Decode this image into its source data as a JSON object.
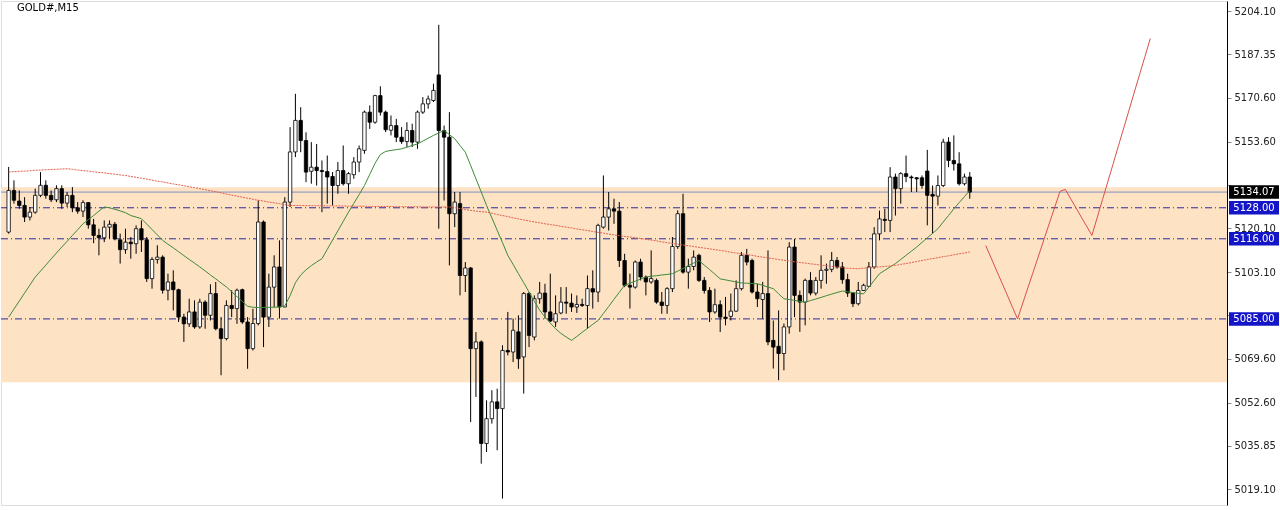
{
  "chart_data": {
    "type": "candlestick",
    "title": "GOLD#,M15",
    "color": "#000000",
    "categories": [
      null,
      null,
      null,
      null,
      null,
      null,
      null,
      null,
      null,
      null,
      null,
      null,
      null,
      null,
      null,
      null,
      null,
      null,
      null,
      null,
      null,
      null,
      null,
      null,
      null,
      null,
      null,
      null,
      null,
      null,
      null,
      null,
      null,
      null,
      null,
      null,
      null,
      null,
      null,
      null,
      null,
      null,
      null,
      null,
      null,
      null,
      null,
      null,
      null,
      null,
      null,
      null,
      null,
      null,
      null,
      null,
      null,
      null,
      null,
      null,
      null,
      null,
      null,
      null,
      null,
      null,
      null,
      null,
      null,
      null,
      null,
      null,
      null,
      null,
      null,
      null,
      null,
      null,
      null,
      null,
      null,
      null,
      null,
      null,
      null,
      null,
      null,
      null,
      null,
      null,
      null,
      null,
      null,
      null,
      null,
      null,
      null,
      null,
      null,
      null,
      null,
      null,
      null,
      null,
      null,
      null,
      null,
      null,
      null,
      null,
      null,
      null,
      null,
      null,
      null,
      null,
      null,
      null,
      null,
      null,
      null,
      null,
      null,
      null,
      null,
      null,
      null,
      null,
      null,
      null,
      null,
      null,
      null,
      null,
      null,
      null,
      null,
      null,
      null,
      null,
      null,
      null,
      null,
      null,
      null,
      null,
      null,
      null,
      null,
      null,
      null,
      null,
      null,
      null,
      null,
      null,
      null,
      null,
      null,
      null,
      null,
      null,
      null,
      null,
      null,
      null,
      null,
      null,
      null,
      null,
      null,
      null,
      null,
      null,
      null,
      null,
      null,
      null,
      null,
      null,
      null,
      null,
      null,
      null,
      null,
      null,
      null,
      null,
      null,
      null,
      null,
      null,
      null,
      null,
      null,
      null,
      null,
      null,
      null,
      null,
      null,
      null,
      null,
      null,
      null,
      null,
      null,
      null,
      null,
      null,
      null,
      null,
      null,
      null,
      null,
      null,
      null,
      null,
      null,
      null,
      null,
      null,
      null,
      null,
      null,
      null,
      null,
      null,
      null
    ],
    "ohlc": [
      [
        5118.6,
        5143.8,
        5118.0,
        5134.7
      ],
      [
        5134.7,
        5138.6,
        5129.6,
        5130.9
      ],
      [
        5130.6,
        5134.7,
        5127.6,
        5128.9
      ],
      [
        5128.9,
        5132.1,
        5122.5,
        5124.4
      ],
      [
        5124.4,
        5128.3,
        5123.1,
        5126.3
      ],
      [
        5126.3,
        5135.4,
        5125.7,
        5132.8
      ],
      [
        5132.8,
        5141.8,
        5132.1,
        5136.7
      ],
      [
        5136.7,
        5138.6,
        5131.5,
        5132.8
      ],
      [
        5132.8,
        5134.7,
        5130.2,
        5131.1
      ],
      [
        5131.1,
        5136.7,
        5130.2,
        5135.4
      ],
      [
        5135.4,
        5136.7,
        5127.6,
        5129.8
      ],
      [
        5129.8,
        5134.1,
        5128.3,
        5132.8
      ],
      [
        5132.8,
        5136.0,
        5126.3,
        5128.0
      ],
      [
        5128.0,
        5130.2,
        5125.7,
        5126.7
      ],
      [
        5126.7,
        5130.9,
        5124.4,
        5130.0
      ],
      [
        5130.0,
        5130.2,
        5119.9,
        5121.4
      ],
      [
        5121.4,
        5123.7,
        5114.3,
        5117.3
      ],
      [
        5117.3,
        5119.9,
        5109.6,
        5116.4
      ],
      [
        5116.4,
        5123.1,
        5114.7,
        5120.5
      ],
      [
        5120.5,
        5123.1,
        5116.0,
        5121.6
      ],
      [
        5121.6,
        5122.5,
        5115.4,
        5116.0
      ],
      [
        5115.6,
        5118.0,
        5106.4,
        5111.8
      ],
      [
        5111.8,
        5119.9,
        5110.2,
        5114.7
      ],
      [
        5114.7,
        5116.7,
        5108.3,
        5114.1
      ],
      [
        5114.1,
        5121.2,
        5110.2,
        5119.9
      ],
      [
        5119.9,
        5123.1,
        5110.9,
        5115.6
      ],
      [
        5115.6,
        5116.7,
        5099.3,
        5100.6
      ],
      [
        5100.6,
        5108.9,
        5096.7,
        5108.0
      ],
      [
        5108.0,
        5113.5,
        5106.4,
        5108.9
      ],
      [
        5108.9,
        5109.6,
        5094.8,
        5096.1
      ],
      [
        5096.1,
        5102.5,
        5092.2,
        5099.3
      ],
      [
        5099.3,
        5103.8,
        5088.3,
        5096.3
      ],
      [
        5096.3,
        5096.7,
        5083.8,
        5085.7
      ],
      [
        5085.7,
        5087.0,
        5076.1,
        5083.1
      ],
      [
        5083.1,
        5092.8,
        5081.9,
        5087.7
      ],
      [
        5087.7,
        5092.2,
        5081.2,
        5081.9
      ],
      [
        5081.9,
        5092.8,
        5081.2,
        5091.5
      ],
      [
        5091.5,
        5092.2,
        5081.2,
        5086.4
      ],
      [
        5086.4,
        5098.4,
        5084.4,
        5094.8
      ],
      [
        5094.8,
        5099.3,
        5080.6,
        5081.2
      ],
      [
        5081.2,
        5085.7,
        5063.2,
        5077.4
      ],
      [
        5077.4,
        5092.2,
        5076.7,
        5090.2
      ],
      [
        5090.2,
        5096.1,
        5085.7,
        5089.0
      ],
      [
        5089.0,
        5096.7,
        5083.1,
        5096.1
      ],
      [
        5096.3,
        5096.7,
        5083.1,
        5083.8
      ],
      [
        5083.8,
        5085.7,
        5065.7,
        5073.5
      ],
      [
        5073.5,
        5088.9,
        5072.8,
        5083.2
      ],
      [
        5083.2,
        5130.9,
        5082.5,
        5122.5
      ],
      [
        5122.5,
        5123.1,
        5074.1,
        5085.7
      ],
      [
        5085.7,
        5102.5,
        5081.9,
        5097.3
      ],
      [
        5097.3,
        5109.6,
        5089.6,
        5105.1
      ],
      [
        5105.1,
        5115.4,
        5085.1,
        5089.6
      ],
      [
        5089.6,
        5132.1,
        5089.6,
        5130.2
      ],
      [
        5130.2,
        5159.2,
        5128.3,
        5149.6
      ],
      [
        5149.6,
        5172.1,
        5147.6,
        5161.8
      ],
      [
        5161.8,
        5166.9,
        5149.5,
        5154.0
      ],
      [
        5154.0,
        5157.2,
        5137.9,
        5141.8
      ],
      [
        5142.1,
        5153.4,
        5137.3,
        5143.7
      ],
      [
        5143.7,
        5152.7,
        5136.6,
        5142.4
      ],
      [
        5142.4,
        5146.3,
        5126.3,
        5142.0
      ],
      [
        5142.0,
        5148.2,
        5129.6,
        5139.9
      ],
      [
        5140.1,
        5141.8,
        5128.9,
        5136.6
      ],
      [
        5136.6,
        5145.7,
        5133.4,
        5142.4
      ],
      [
        5142.4,
        5152.1,
        5136.6,
        5137.3
      ],
      [
        5137.3,
        5141.8,
        5133.4,
        5141.2
      ],
      [
        5140.8,
        5147.6,
        5139.2,
        5145.7
      ],
      [
        5145.7,
        5152.1,
        5141.8,
        5150.8
      ],
      [
        5150.2,
        5165.6,
        5148.9,
        5165.0
      ],
      [
        5165.0,
        5167.6,
        5158.5,
        5161.1
      ],
      [
        5161.1,
        5171.7,
        5160.5,
        5171.4
      ],
      [
        5171.4,
        5175.0,
        5163.7,
        5165.0
      ],
      [
        5165.0,
        5165.6,
        5157.3,
        5158.2
      ],
      [
        5158.0,
        5163.7,
        5156.0,
        5159.8
      ],
      [
        5159.8,
        5162.4,
        5153.4,
        5155.3
      ],
      [
        5155.3,
        5159.2,
        5152.7,
        5153.6
      ],
      [
        5153.6,
        5161.1,
        5151.5,
        5157.9
      ],
      [
        5157.9,
        5160.5,
        5151.5,
        5153.4
      ],
      [
        5153.4,
        5165.6,
        5150.8,
        5165.0
      ],
      [
        5165.0,
        5170.8,
        5164.3,
        5168.2
      ],
      [
        5168.2,
        5171.4,
        5166.3,
        5170.1
      ],
      [
        5169.5,
        5176.0,
        5168.9,
        5173.4
      ],
      [
        5179.4,
        5198.8,
        5119.9,
        5157.9
      ],
      [
        5157.9,
        5159.8,
        5130.8,
        5155.3
      ],
      [
        5155.3,
        5165.0,
        5105.7,
        5125.7
      ],
      [
        5125.7,
        5134.1,
        5120.5,
        5130.2
      ],
      [
        5129.6,
        5134.1,
        5094.1,
        5101.8
      ],
      [
        5101.8,
        5107.0,
        5095.4,
        5104.7
      ],
      [
        5104.7,
        5105.1,
        5045.1,
        5073.5
      ],
      [
        5073.5,
        5079.9,
        5054.8,
        5076.1
      ],
      [
        5076.1,
        5076.7,
        5029.0,
        5036.8
      ],
      [
        5036.8,
        5053.5,
        5033.5,
        5046.4
      ],
      [
        5046.4,
        5057.4,
        5044.5,
        5052.9
      ],
      [
        5052.9,
        5058.0,
        5034.2,
        5050.3
      ],
      [
        5050.3,
        5074.8,
        5015.5,
        5072.8
      ],
      [
        5072.8,
        5087.7,
        5070.9,
        5072.2
      ],
      [
        5072.2,
        5085.1,
        5068.3,
        5080.6
      ],
      [
        5080.0,
        5086.4,
        5065.7,
        5069.6
      ],
      [
        5070.3,
        5095.4,
        5056.1,
        5094.8
      ],
      [
        5094.8,
        5095.4,
        5074.1,
        5078.6
      ],
      [
        5078.0,
        5094.1,
        5076.7,
        5092.8
      ],
      [
        5092.8,
        5099.3,
        5090.9,
        5095.0
      ],
      [
        5095.0,
        5098.6,
        5085.1,
        5087.7
      ],
      [
        5087.7,
        5102.5,
        5083.8,
        5084.2
      ],
      [
        5083.8,
        5094.1,
        5081.9,
        5087.0
      ],
      [
        5087.3,
        5097.3,
        5086.8,
        5091.5
      ],
      [
        5091.5,
        5097.3,
        5087.0,
        5091.1
      ],
      [
        5091.1,
        5094.8,
        5087.7,
        5089.6
      ],
      [
        5089.6,
        5094.1,
        5087.3,
        5090.6
      ],
      [
        5090.6,
        5092.8,
        5089.6,
        5090.2
      ],
      [
        5090.2,
        5101.8,
        5081.2,
        5096.7
      ],
      [
        5096.7,
        5103.8,
        5089.0,
        5095.4
      ],
      [
        5095.4,
        5121.8,
        5091.5,
        5121.2
      ],
      [
        5120.5,
        5140.5,
        5119.9,
        5124.4
      ],
      [
        5124.4,
        5134.1,
        5119.2,
        5127.6
      ],
      [
        5127.6,
        5131.5,
        5121.8,
        5126.7
      ],
      [
        5126.7,
        5130.2,
        5105.1,
        5107.6
      ],
      [
        5107.6,
        5110.2,
        5097.3,
        5098.0
      ],
      [
        5098.0,
        5102.5,
        5089.0,
        5097.3
      ],
      [
        5097.3,
        5107.6,
        5096.7,
        5107.0
      ],
      [
        5107.0,
        5108.3,
        5099.9,
        5101.2
      ],
      [
        5101.2,
        5101.8,
        5094.1,
        5099.3
      ],
      [
        5099.3,
        5111.5,
        5098.6,
        5100.6
      ],
      [
        5099.9,
        5100.6,
        5090.9,
        5091.5
      ],
      [
        5091.5,
        5095.4,
        5087.0,
        5090.2
      ],
      [
        5090.2,
        5097.3,
        5087.0,
        5096.7
      ],
      [
        5096.7,
        5116.7,
        5095.4,
        5113.0
      ],
      [
        5113.0,
        5127.0,
        5112.1,
        5125.7
      ],
      [
        5125.7,
        5133.4,
        5102.5,
        5103.1
      ],
      [
        5103.1,
        5108.3,
        5096.7,
        5105.3
      ],
      [
        5105.3,
        5111.5,
        5103.8,
        5108.9
      ],
      [
        5109.6,
        5110.2,
        5099.3,
        5099.9
      ],
      [
        5099.9,
        5101.2,
        5094.8,
        5096.0
      ],
      [
        5096.0,
        5097.3,
        5083.8,
        5087.7
      ],
      [
        5087.7,
        5096.7,
        5087.0,
        5090.5
      ],
      [
        5090.5,
        5092.2,
        5079.9,
        5085.7
      ],
      [
        5085.7,
        5093.5,
        5082.5,
        5085.1
      ],
      [
        5086.0,
        5094.8,
        5084.4,
        5088.0
      ],
      [
        5088.0,
        5099.9,
        5087.7,
        5096.7
      ],
      [
        5096.7,
        5110.9,
        5096.0,
        5109.6
      ],
      [
        5109.6,
        5112.1,
        5105.7,
        5107.0
      ],
      [
        5107.6,
        5108.3,
        5094.8,
        5095.4
      ],
      [
        5095.4,
        5098.6,
        5089.6,
        5092.8
      ],
      [
        5092.5,
        5099.3,
        5085.1,
        5094.8
      ],
      [
        5094.8,
        5111.5,
        5074.8,
        5076.1
      ],
      [
        5076.7,
        5084.4,
        5065.8,
        5074.1
      ],
      [
        5074.4,
        5088.3,
        5061.3,
        5071.6
      ],
      [
        5071.6,
        5083.2,
        5065.1,
        5081.9
      ],
      [
        5081.9,
        5114.7,
        5079.3,
        5112.8
      ],
      [
        5112.8,
        5116.0,
        5085.7,
        5094.1
      ],
      [
        5094.1,
        5096.0,
        5080.0,
        5091.5
      ],
      [
        5091.5,
        5100.6,
        5082.5,
        5099.9
      ],
      [
        5099.9,
        5103.1,
        5094.1,
        5095.0
      ],
      [
        5095.0,
        5101.2,
        5094.1,
        5099.9
      ],
      [
        5099.9,
        5109.6,
        5096.7,
        5103.8
      ],
      [
        5103.8,
        5106.4,
        5098.6,
        5104.2
      ],
      [
        5104.2,
        5110.9,
        5103.1,
        5107.6
      ],
      [
        5107.6,
        5108.9,
        5104.4,
        5105.1
      ],
      [
        5105.1,
        5107.0,
        5098.6,
        5100.2
      ],
      [
        5100.2,
        5102.5,
        5093.5,
        5095.0
      ],
      [
        5095.0,
        5095.4,
        5089.6,
        5090.9
      ],
      [
        5090.9,
        5099.3,
        5090.2,
        5096.0
      ],
      [
        5096.0,
        5098.6,
        5096.0,
        5098.0
      ],
      [
        5097.6,
        5107.0,
        5097.3,
        5105.1
      ],
      [
        5105.1,
        5120.5,
        5104.4,
        5117.9
      ],
      [
        5117.9,
        5126.9,
        5115.4,
        5123.7
      ],
      [
        5123.5,
        5127.6,
        5118.6,
        5123.1
      ],
      [
        5123.1,
        5143.7,
        5118.6,
        5139.9
      ],
      [
        5139.9,
        5141.2,
        5125.0,
        5135.4
      ],
      [
        5135.4,
        5141.8,
        5129.6,
        5141.2
      ],
      [
        5141.2,
        5148.2,
        5137.9,
        5140.1
      ],
      [
        5139.9,
        5140.5,
        5134.1,
        5139.6
      ],
      [
        5139.6,
        5139.9,
        5134.1,
        5139.2
      ],
      [
        5139.6,
        5140.5,
        5135.4,
        5136.6
      ],
      [
        5142.2,
        5150.4,
        5121.2,
        5132.8
      ],
      [
        5133.2,
        5136.6,
        5118.0,
        5132.5
      ],
      [
        5132.5,
        5140.5,
        5128.9,
        5136.6
      ],
      [
        5136.6,
        5154.7,
        5136.0,
        5153.4
      ],
      [
        5153.4,
        5155.3,
        5143.7,
        5146.3
      ],
      [
        5146.3,
        5156.0,
        5142.4,
        5145.0
      ],
      [
        5145.0,
        5149.5,
        5136.6,
        5137.3
      ],
      [
        5137.3,
        5141.2,
        5136.6,
        5139.9
      ],
      [
        5139.9,
        5141.8,
        5131.5,
        5134.07
      ],
      null,
      null,
      null,
      null,
      null,
      null,
      null,
      null,
      null,
      null,
      null,
      null,
      null,
      null,
      null,
      null,
      null,
      null,
      null,
      null,
      null,
      null,
      null,
      null,
      null,
      null,
      null,
      null,
      null,
      null,
      null,
      null,
      null,
      null,
      null,
      null,
      null,
      null,
      null,
      null,
      null,
      null,
      null,
      null,
      null,
      null,
      null
    ],
    "series": [
      {
        "type": "line",
        "color": "#3d8b37",
        "line_style": "solid",
        "values": [
          5085.7,
          5088.8,
          5091.9,
          5095.0,
          5098.1,
          5101.2,
          5103.5,
          5105.8,
          5108.2,
          5110.5,
          5112.8,
          5115.0,
          5117.3,
          5119.5,
          5121.8,
          5123.4,
          5125.0,
          5126.7,
          5128.3,
          5128.0,
          5127.4,
          5126.8,
          5126.1,
          5125.0,
          5124.4,
          5123.8,
          5121.7,
          5119.6,
          5117.5,
          5115.4,
          5113.9,
          5112.5,
          5111.0,
          5109.5,
          5108.0,
          5106.6,
          5105.1,
          5103.6,
          5102.0,
          5100.5,
          5098.9,
          5097.4,
          5095.5,
          5093.6,
          5091.8,
          5089.9,
          5089.5,
          5089.4,
          5089.4,
          5089.5,
          5089.5,
          5089.6,
          5090.0,
          5094.0,
          5099.0,
          5102.0,
          5104.0,
          5105.6,
          5107.0,
          5108.3,
          5111.9,
          5115.5,
          5119.1,
          5122.7,
          5126.3,
          5129.7,
          5133.1,
          5136.6,
          5140.9,
          5145.2,
          5148.6,
          5149.8,
          5150.2,
          5150.5,
          5150.8,
          5151.4,
          5152.1,
          5152.7,
          5153.8,
          5154.9,
          5156.0,
          5157.0,
          5157.9,
          5156.3,
          5154.7,
          5152.1,
          5149.5,
          5144.4,
          5139.2,
          5134.1,
          5128.9,
          5124.1,
          5119.3,
          5114.5,
          5109.6,
          5106.1,
          5102.5,
          5099.0,
          5095.4,
          5091.8,
          5088.4,
          5085.7,
          5083.4,
          5081.2,
          5079.4,
          5078.0,
          5076.7,
          5078.2,
          5079.8,
          5081.3,
          5082.9,
          5084.4,
          5087.1,
          5089.8,
          5092.6,
          5095.3,
          5098.0,
          5098.8,
          5099.6,
          5100.4,
          5101.2,
          5101.5,
          5101.7,
          5102.0,
          5102.2,
          5102.5,
          5103.5,
          5104.5,
          5105.6,
          5106.6,
          5107.6,
          5105.8,
          5104.1,
          5102.3,
          5100.5,
          5100.1,
          5099.7,
          5099.3,
          5098.9,
          5098.8,
          5098.7,
          5098.6,
          5098.0,
          5097.3,
          5096.7,
          5094.7,
          5092.8,
          5092.5,
          5092.2,
          5091.8,
          5091.5,
          5092.1,
          5092.7,
          5093.3,
          5094.0,
          5094.6,
          5095.2,
          5095.8,
          5095.5,
          5095.2,
          5094.9,
          5094.7,
          5097.3,
          5099.9,
          5102.5,
          5103.8,
          5105.1,
          5106.4,
          5108.0,
          5109.6,
          5111.2,
          5112.8,
          5114.6,
          5116.4,
          5118.1,
          5119.9,
          5122.5,
          5125.0,
          5127.6,
          5130.0,
          5132.3,
          5134.7,
          null,
          null,
          null,
          null,
          null,
          null,
          null,
          null,
          null,
          null,
          null,
          null,
          null,
          null,
          null,
          null,
          null,
          null,
          null,
          null,
          null,
          null,
          null,
          null,
          null,
          null,
          null,
          null,
          null,
          null,
          null,
          null,
          null,
          null,
          null,
          null,
          null,
          null,
          null,
          null,
          null,
          null,
          null,
          null,
          null,
          null,
          null
        ]
      },
      {
        "type": "line",
        "color": "#e0604e",
        "line_style": "dotted",
        "values": [
          5141.8,
          5142.0,
          5142.1,
          5142.2,
          5142.3,
          5142.5,
          5142.6,
          5142.7,
          5142.8,
          5142.9,
          5143.0,
          5143.1,
          5142.9,
          5142.6,
          5142.4,
          5142.2,
          5141.9,
          5141.7,
          5141.5,
          5141.2,
          5141.0,
          5140.7,
          5140.5,
          5140.1,
          5139.8,
          5139.4,
          5139.1,
          5138.7,
          5138.3,
          5138.0,
          5137.6,
          5137.2,
          5136.9,
          5136.5,
          5136.1,
          5135.8,
          5135.4,
          5135.0,
          5134.6,
          5134.2,
          5133.8,
          5133.3,
          5132.9,
          5132.5,
          5132.1,
          5131.7,
          5131.3,
          5130.9,
          5130.6,
          5130.2,
          5129.9,
          5129.6,
          5129.2,
          5128.9,
          5128.9,
          5128.9,
          5128.8,
          5128.8,
          5128.8,
          5128.8,
          5128.7,
          5128.7,
          5128.7,
          5128.7,
          5128.6,
          5128.6,
          5128.6,
          5128.6,
          5128.5,
          5128.5,
          5128.5,
          5128.5,
          5128.5,
          5128.4,
          5128.4,
          5128.4,
          5128.4,
          5128.4,
          5128.3,
          5128.3,
          5128.3,
          5128.3,
          5128.3,
          5128.3,
          5128.0,
          5127.7,
          5127.3,
          5127.0,
          5126.7,
          5126.5,
          5126.3,
          5125.9,
          5125.4,
          5125.0,
          5124.6,
          5124.1,
          5123.7,
          5123.3,
          5122.9,
          5122.5,
          5122.2,
          5121.8,
          5121.5,
          5121.2,
          5120.8,
          5120.5,
          5120.2,
          5119.8,
          5119.5,
          5119.2,
          5118.8,
          5118.5,
          5118.2,
          5117.8,
          5117.5,
          5117.2,
          5116.9,
          5116.7,
          5116.4,
          5116.1,
          5115.8,
          5115.5,
          5115.2,
          5114.8,
          5114.5,
          5114.2,
          5113.9,
          5113.6,
          5113.3,
          5113.0,
          5112.7,
          5112.4,
          5112.1,
          5111.8,
          5111.5,
          5111.2,
          5110.8,
          5110.5,
          5110.2,
          5109.9,
          5109.6,
          5109.2,
          5108.9,
          5108.6,
          5108.3,
          5108.0,
          5107.7,
          5107.4,
          5107.1,
          5106.8,
          5106.6,
          5106.3,
          5106.1,
          5105.8,
          5105.6,
          5105.3,
          5105.1,
          5104.8,
          5104.6,
          5104.5,
          5104.4,
          5104.6,
          5104.8,
          5105.0,
          5105.1,
          5105.3,
          5105.5,
          5105.7,
          5106.1,
          5106.4,
          5106.8,
          5107.2,
          5107.6,
          5108.0,
          5108.3,
          5108.7,
          5109.1,
          5109.4,
          5109.8,
          5110.2,
          5110.5,
          5110.9,
          null,
          null,
          null,
          null,
          null,
          null,
          null,
          null,
          null,
          null,
          null,
          null,
          null,
          null,
          null,
          null,
          null,
          null,
          null,
          null,
          null,
          null,
          null,
          null,
          null,
          null,
          null,
          null,
          null,
          null,
          null,
          null,
          null,
          null,
          null,
          null,
          null,
          null,
          null,
          null,
          null,
          null,
          null,
          null,
          null,
          null,
          null
        ]
      },
      {
        "type": "line",
        "color": "#d9504a",
        "line_style": "solid",
        "values": [
          null,
          null,
          null,
          null,
          null,
          null,
          null,
          null,
          null,
          null,
          null,
          null,
          null,
          null,
          null,
          null,
          null,
          null,
          null,
          null,
          null,
          null,
          null,
          null,
          null,
          null,
          null,
          null,
          null,
          null,
          null,
          null,
          null,
          null,
          null,
          null,
          null,
          null,
          null,
          null,
          null,
          null,
          null,
          null,
          null,
          null,
          null,
          null,
          null,
          null,
          null,
          null,
          null,
          null,
          null,
          null,
          null,
          null,
          null,
          null,
          null,
          null,
          null,
          null,
          null,
          null,
          null,
          null,
          null,
          null,
          null,
          null,
          null,
          null,
          null,
          null,
          null,
          null,
          null,
          null,
          null,
          null,
          null,
          null,
          null,
          null,
          null,
          null,
          null,
          null,
          null,
          null,
          null,
          null,
          null,
          null,
          null,
          null,
          null,
          null,
          null,
          null,
          null,
          null,
          null,
          null,
          null,
          null,
          null,
          null,
          null,
          null,
          null,
          null,
          null,
          null,
          null,
          null,
          null,
          null,
          null,
          null,
          null,
          null,
          null,
          null,
          null,
          null,
          null,
          null,
          null,
          null,
          null,
          null,
          null,
          null,
          null,
          null,
          null,
          null,
          null,
          null,
          null,
          null,
          null,
          null,
          null,
          null,
          null,
          null,
          null,
          null,
          null,
          null,
          null,
          null,
          null,
          null,
          null,
          null,
          null,
          null,
          null,
          null,
          null,
          null,
          null,
          null,
          null,
          null,
          null,
          null,
          null,
          null,
          null,
          null,
          null,
          null,
          null,
          null,
          null,
          null,
          null,
          null,
          5113.4,
          5108.7,
          5103.9,
          5099.2,
          5094.5,
          5089.7,
          5085.0,
          5091.2,
          5097.4,
          5103.5,
          5109.7,
          5115.9,
          5122.1,
          5128.2,
          5134.4,
          5135.1,
          5131.5,
          5128.0,
          5124.4,
          5120.9,
          5117.3,
          5124.2,
          5131.2,
          5138.1,
          5145.0,
          5152.0,
          5158.9,
          5165.8,
          5172.8,
          5179.7,
          5186.6,
          5193.5,
          null,
          null,
          null,
          null,
          null,
          null,
          null,
          null,
          null,
          null,
          null,
          null,
          null
        ]
      }
    ],
    "ylim": [
      5013.0,
      5208.0
    ],
    "yticks": [
      {
        "value": 5204.1,
        "label": "5204.10"
      },
      {
        "value": 5187.35,
        "label": "5187.35"
      },
      {
        "value": 5170.6,
        "label": "5170.60"
      },
      {
        "value": 5153.6,
        "label": "5153.60"
      },
      {
        "value": 5136.85,
        "label": null
      },
      {
        "value": 5120.1,
        "label": "5120.10"
      },
      {
        "value": 5103.1,
        "label": "5103.10"
      },
      {
        "value": 5086.35,
        "label": null
      },
      {
        "value": 5069.6,
        "label": "5069.60"
      },
      {
        "value": 5052.6,
        "label": "5052.60"
      },
      {
        "value": 5035.85,
        "label": "5035.85"
      },
      {
        "value": 5019.1,
        "label": "5019.10"
      }
    ],
    "bands": [
      {
        "axis": "y",
        "from": 5060.5,
        "to": 5135.9,
        "color": "#fde2c4"
      }
    ],
    "ref_lines": [
      {
        "axis": "y",
        "value": 5134.07,
        "label": "5134.07",
        "color": "#7f92c4",
        "line_style": "solid"
      },
      {
        "axis": "y",
        "value": 5128,
        "label": "5128.00",
        "color": "#2a2a9a",
        "line_style": "dashed"
      },
      {
        "axis": "y",
        "value": 5116,
        "label": "5116.00",
        "color": "#2a2a9a",
        "line_style": "dashed"
      },
      {
        "axis": "y",
        "value": 5085,
        "label": "5085.00",
        "color": "#2a2a9a",
        "line_style": "dashed"
      }
    ],
    "tick_labels": "y"
  }
}
